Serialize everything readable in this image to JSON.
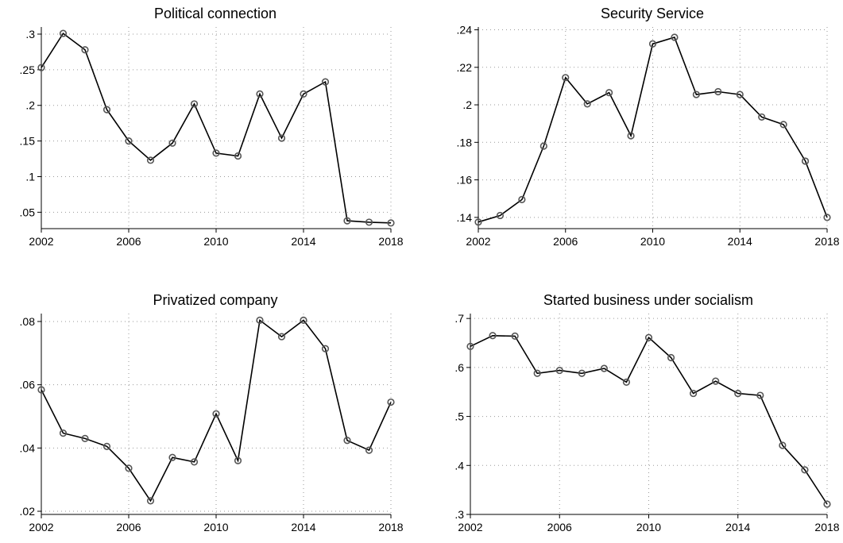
{
  "chart_data": [
    {
      "type": "line",
      "title": "Political connection",
      "xlabel": "",
      "ylabel": "",
      "x": [
        2002,
        2003,
        2004,
        2005,
        2006,
        2007,
        2008,
        2009,
        2010,
        2011,
        2012,
        2013,
        2014,
        2015,
        2016,
        2017,
        2018
      ],
      "values": [
        0.253,
        0.301,
        0.278,
        0.194,
        0.15,
        0.123,
        0.147,
        0.202,
        0.133,
        0.129,
        0.216,
        0.154,
        0.216,
        0.233,
        0.038,
        0.036,
        0.035
      ],
      "xticks": [
        2002,
        2006,
        2010,
        2014,
        2018
      ],
      "xtick_labels": [
        "2002",
        "2006",
        "2010",
        "2014",
        "2018"
      ],
      "yticks": [
        0.05,
        0.1,
        0.15,
        0.2,
        0.25,
        0.3
      ],
      "ytick_labels": [
        ".05",
        ".1",
        ".15",
        ".2",
        ".25",
        ".3"
      ],
      "xlim": [
        2002,
        2018
      ],
      "ylim": [
        0.027,
        0.31
      ],
      "grid": true,
      "marker": "hollow-circle",
      "line_color": "#000000",
      "marker_color": "#555555"
    },
    {
      "type": "line",
      "title": "Security Service",
      "xlabel": "",
      "ylabel": "",
      "x": [
        2002,
        2003,
        2004,
        2005,
        2006,
        2007,
        2008,
        2009,
        2010,
        2011,
        2012,
        2013,
        2014,
        2015,
        2016,
        2017,
        2018
      ],
      "values": [
        0.1375,
        0.141,
        0.1495,
        0.178,
        0.2145,
        0.2005,
        0.2065,
        0.1835,
        0.2325,
        0.236,
        0.2055,
        0.207,
        0.2055,
        0.1935,
        0.1895,
        0.17,
        0.14
      ],
      "xticks": [
        2002,
        2006,
        2010,
        2014,
        2018
      ],
      "xtick_labels": [
        "2002",
        "2006",
        "2010",
        "2014",
        "2018"
      ],
      "yticks": [
        0.14,
        0.16,
        0.18,
        0.2,
        0.22,
        0.24
      ],
      "ytick_labels": [
        ".14",
        ".16",
        ".18",
        ".2",
        ".22",
        ".24"
      ],
      "xlim": [
        2002,
        2018
      ],
      "ylim": [
        0.134,
        0.2415
      ],
      "grid": true,
      "marker": "hollow-circle",
      "line_color": "#000000",
      "marker_color": "#555555"
    },
    {
      "type": "line",
      "title": "Privatized company",
      "xlabel": "",
      "ylabel": "",
      "x": [
        2002,
        2003,
        2004,
        2005,
        2006,
        2007,
        2008,
        2009,
        2010,
        2011,
        2012,
        2013,
        2014,
        2015,
        2016,
        2017,
        2018
      ],
      "values": [
        0.0584,
        0.0447,
        0.043,
        0.0405,
        0.0336,
        0.0233,
        0.037,
        0.0356,
        0.0508,
        0.036,
        0.0804,
        0.0752,
        0.0804,
        0.0714,
        0.0424,
        0.0393,
        0.0545
      ],
      "xticks": [
        2002,
        2006,
        2010,
        2014,
        2018
      ],
      "xtick_labels": [
        "2002",
        "2006",
        "2010",
        "2014",
        "2018"
      ],
      "yticks": [
        0.02,
        0.04,
        0.06,
        0.08
      ],
      "ytick_labels": [
        ".02",
        ".04",
        ".06",
        ".08"
      ],
      "xlim": [
        2002,
        2018
      ],
      "ylim": [
        0.019,
        0.0825
      ],
      "grid": true,
      "marker": "hollow-circle",
      "line_color": "#000000",
      "marker_color": "#555555"
    },
    {
      "type": "line",
      "title": "Started business under socialism",
      "xlabel": "",
      "ylabel": "",
      "x": [
        2002,
        2003,
        2004,
        2005,
        2006,
        2007,
        2008,
        2009,
        2010,
        2011,
        2012,
        2013,
        2014,
        2015,
        2016,
        2017,
        2018
      ],
      "values": [
        0.643,
        0.665,
        0.664,
        0.588,
        0.594,
        0.588,
        0.598,
        0.57,
        0.661,
        0.62,
        0.547,
        0.572,
        0.547,
        0.543,
        0.441,
        0.391,
        0.321
      ],
      "xticks": [
        2002,
        2006,
        2010,
        2014,
        2018
      ],
      "xtick_labels": [
        "2002",
        "2006",
        "2010",
        "2014",
        "2018"
      ],
      "yticks": [
        0.3,
        0.4,
        0.5,
        0.6,
        0.7
      ],
      "ytick_labels": [
        ".3",
        ".4",
        ".5",
        ".6",
        ".7"
      ],
      "xlim": [
        2002,
        2018
      ],
      "ylim": [
        0.3,
        0.71
      ],
      "grid": true,
      "marker": "hollow-circle",
      "line_color": "#000000",
      "marker_color": "#555555"
    }
  ]
}
